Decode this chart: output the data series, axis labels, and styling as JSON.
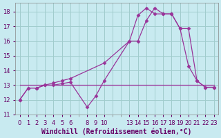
{
  "background_color": "#c8eaf0",
  "grid_color": "#a0cccc",
  "line_color": "#993399",
  "marker_color": "#993399",
  "xlabel": "Windchill (Refroidissement éolien,°C)",
  "xlim": [
    -0.5,
    23.5
  ],
  "ylim": [
    11,
    18.6
  ],
  "yticks": [
    11,
    12,
    13,
    14,
    15,
    16,
    17,
    18
  ],
  "xtick_positions": [
    0,
    1,
    2,
    3,
    4,
    5,
    6,
    8,
    9,
    10,
    13,
    14,
    15,
    16,
    17,
    18,
    19,
    20,
    21,
    22,
    23
  ],
  "xtick_labels": [
    "0",
    "1",
    "2",
    "3",
    "4",
    "5",
    "6",
    "8",
    "9",
    "10",
    "13",
    "14",
    "15",
    "16",
    "17",
    "18",
    "19",
    "20",
    "21",
    "22",
    "23"
  ],
  "all_xtick_positions": [
    0,
    1,
    2,
    3,
    4,
    5,
    6,
    7,
    8,
    9,
    10,
    11,
    12,
    13,
    14,
    15,
    16,
    17,
    18,
    19,
    20,
    21,
    22,
    23
  ],
  "line1_x": [
    0,
    1,
    2,
    3,
    4,
    5,
    6,
    8,
    9,
    10,
    13,
    14,
    15,
    16,
    17,
    18,
    19,
    20,
    21,
    22,
    23
  ],
  "line1_y": [
    12,
    12.8,
    12.8,
    13.0,
    13.0,
    13.1,
    13.2,
    11.5,
    12.25,
    13.3,
    16.0,
    16.0,
    17.4,
    18.25,
    17.85,
    17.85,
    16.85,
    14.3,
    13.3,
    12.85,
    12.85
  ],
  "line2_x": [
    0,
    1,
    2,
    3,
    4,
    5,
    6,
    10,
    13,
    14,
    15,
    16,
    17,
    18,
    19,
    20,
    21,
    22,
    23
  ],
  "line2_y": [
    12,
    12.8,
    12.8,
    13.0,
    13.15,
    13.3,
    13.45,
    14.5,
    16.0,
    17.75,
    18.25,
    17.85,
    17.85,
    17.85,
    16.85,
    16.85,
    13.3,
    12.85,
    12.85
  ],
  "line3_x": [
    0,
    23
  ],
  "line3_y": [
    13,
    13
  ],
  "font_color": "#660066",
  "tick_fontsize": 6,
  "label_fontsize": 7
}
